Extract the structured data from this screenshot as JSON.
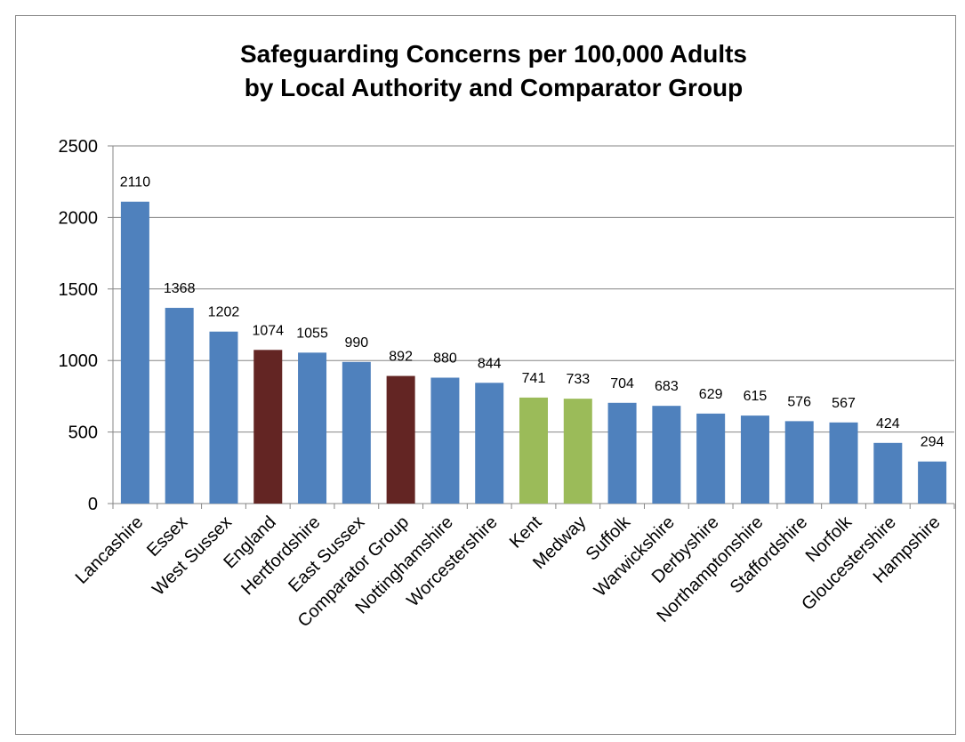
{
  "chart_data": {
    "type": "bar",
    "title": "Safeguarding Concerns per 100,000 Adults",
    "subtitle": "by Local Authority and Comparator Group",
    "categories": [
      "Lancashire",
      "Essex",
      "West Sussex",
      "England",
      "Hertfordshire",
      "East Sussex",
      "Comparator Group",
      "Nottinghamshire",
      "Worcestershire",
      "Kent",
      "Medway",
      "Suffolk",
      "Warwickshire",
      "Derbyshire",
      "Northamptonshire",
      "Staffordshire",
      "Norfolk",
      "Gloucestershire",
      "Hampshire"
    ],
    "values": [
      2110,
      1368,
      1202,
      1074,
      1055,
      990,
      892,
      880,
      844,
      741,
      733,
      704,
      683,
      629,
      615,
      576,
      567,
      424,
      294
    ],
    "data_labels": [
      "2110",
      "1368",
      "1202",
      "1074",
      "1055",
      "990",
      "892",
      "880",
      "844",
      "741",
      "733",
      "704",
      "683",
      "629",
      "615",
      "576",
      "567",
      "424",
      "294"
    ],
    "bar_colors": [
      "#4F81BD",
      "#4F81BD",
      "#4F81BD",
      "#632523",
      "#4F81BD",
      "#4F81BD",
      "#632523",
      "#4F81BD",
      "#4F81BD",
      "#9BBB59",
      "#9BBB59",
      "#4F81BD",
      "#4F81BD",
      "#4F81BD",
      "#4F81BD",
      "#4F81BD",
      "#4F81BD",
      "#4F81BD",
      "#4F81BD"
    ],
    "y_ticks": [
      "0",
      "500",
      "1000",
      "1500",
      "2000",
      "2500"
    ],
    "xlabel": "",
    "ylabel": "",
    "ylim": [
      0,
      2500
    ],
    "grid": true,
    "legend": "none"
  }
}
